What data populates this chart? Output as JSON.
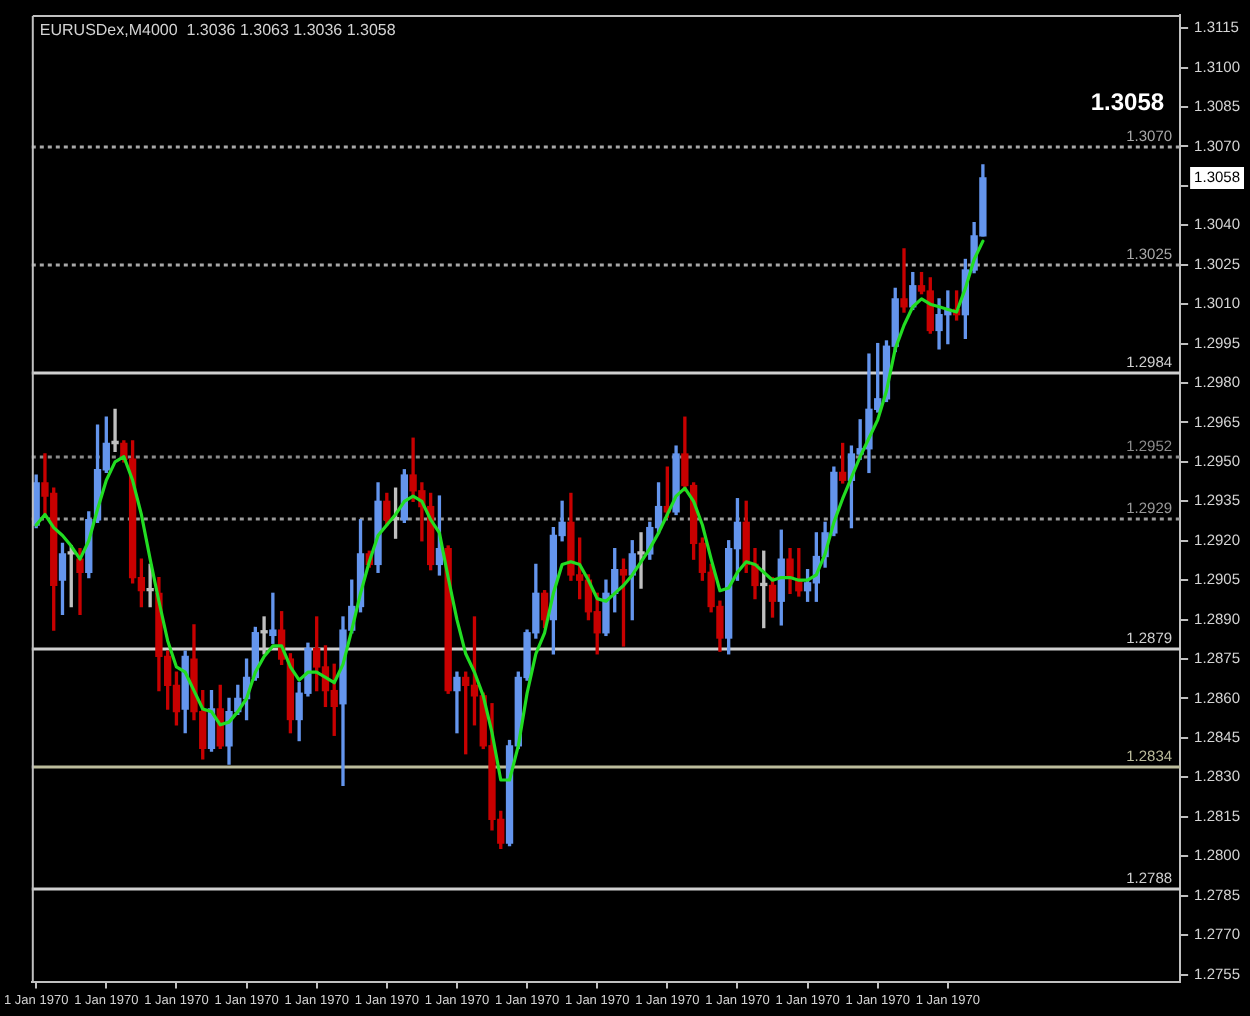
{
  "chart_data": {
    "type": "candlestick",
    "title": "EURUSDex,M4000  1.3036 1.3063 1.3036 1.3058",
    "categories": [
      "1 Jan 1970",
      null,
      null,
      null,
      null,
      null,
      null,
      null,
      "1 Jan 1970",
      null,
      null,
      null,
      null,
      null,
      null,
      null,
      "1 Jan 1970",
      null,
      null,
      null,
      null,
      null,
      null,
      null,
      "1 Jan 1970",
      null,
      null,
      null,
      null,
      null,
      null,
      null,
      "1 Jan 1970",
      null,
      null,
      null,
      null,
      null,
      null,
      null,
      "1 Jan 1970",
      null,
      null,
      null,
      null,
      null,
      null,
      null,
      "1 Jan 1970",
      null,
      null,
      null,
      null,
      null,
      null,
      null,
      "1 Jan 1970",
      null,
      null,
      null,
      null,
      null,
      null,
      null,
      "1 Jan 1970",
      null,
      null,
      null,
      null,
      null,
      null,
      null,
      "1 Jan 1970",
      null,
      null,
      null,
      null,
      null,
      null,
      null,
      "1 Jan 1970",
      null,
      null,
      null,
      null,
      null,
      null,
      null,
      "1 Jan 1970",
      null,
      null,
      null,
      null,
      null,
      null,
      null,
      "1 Jan 1970",
      null,
      null,
      null,
      null,
      null,
      null,
      null,
      "1 Jan 1970",
      null,
      null,
      null,
      null,
      null,
      null,
      null,
      null,
      null,
      null,
      null,
      null,
      null,
      null,
      null,
      null,
      null,
      null,
      null,
      null,
      null,
      null,
      null,
      null,
      null,
      null
    ],
    "ohlc": [
      [
        1.2926,
        1.2945,
        1.2925,
        1.2942
      ],
      [
        1.2942,
        1.2953,
        1.2929,
        1.2937
      ],
      [
        1.2938,
        1.294,
        1.2886,
        1.2903
      ],
      [
        1.2905,
        1.2919,
        1.2892,
        1.2915
      ],
      [
        1.2915,
        1.2918,
        1.2895,
        1.2915
      ],
      [
        1.2913,
        1.2917,
        1.2892,
        1.2908
      ],
      [
        1.2908,
        1.2931,
        1.2906,
        1.2928
      ],
      [
        1.2928,
        1.2964,
        1.2927,
        1.2947
      ],
      [
        1.2947,
        1.2967,
        1.2946,
        1.2957
      ],
      [
        1.2957,
        1.297,
        1.2954,
        1.2957
      ],
      [
        1.2957,
        1.2958,
        1.295,
        1.2951
      ],
      [
        1.2951,
        1.2958,
        1.2904,
        1.2906
      ],
      [
        1.2906,
        1.2913,
        1.2895,
        1.2901
      ],
      [
        1.2901,
        1.2911,
        1.2895,
        1.2901
      ],
      [
        1.29,
        1.2906,
        1.2863,
        1.2876
      ],
      [
        1.2876,
        1.2878,
        1.2856,
        1.2865
      ],
      [
        1.2865,
        1.287,
        1.285,
        1.2855
      ],
      [
        1.2856,
        1.2878,
        1.2847,
        1.2876
      ],
      [
        1.2875,
        1.2888,
        1.2852,
        1.2855
      ],
      [
        1.2855,
        1.2863,
        1.2837,
        1.2841
      ],
      [
        1.2841,
        1.2863,
        1.284,
        1.2856
      ],
      [
        1.2856,
        1.2865,
        1.2841,
        1.2842
      ],
      [
        1.2842,
        1.286,
        1.2835,
        1.2855
      ],
      [
        1.2855,
        1.2865,
        1.2854,
        1.286
      ],
      [
        1.286,
        1.2875,
        1.2852,
        1.2868
      ],
      [
        1.2868,
        1.2887,
        1.2867,
        1.2885
      ],
      [
        1.2885,
        1.2891,
        1.2877,
        1.2885
      ],
      [
        1.2884,
        1.29,
        1.2881,
        1.2886
      ],
      [
        1.2886,
        1.2893,
        1.2873,
        1.2875
      ],
      [
        1.2875,
        1.2877,
        1.2847,
        1.2852
      ],
      [
        1.2852,
        1.2866,
        1.2844,
        1.2862
      ],
      [
        1.2862,
        1.2881,
        1.2861,
        1.2879
      ],
      [
        1.2879,
        1.2891,
        1.2863,
        1.2872
      ],
      [
        1.2872,
        1.288,
        1.2857,
        1.2863
      ],
      [
        1.2863,
        1.2873,
        1.2846,
        1.2857
      ],
      [
        1.2858,
        1.2891,
        1.2827,
        1.2886
      ],
      [
        1.2886,
        1.2905,
        1.2885,
        1.2895
      ],
      [
        1.2895,
        1.2928,
        1.2893,
        1.2915
      ],
      [
        1.2915,
        1.2916,
        1.291,
        1.2911
      ],
      [
        1.2911,
        1.2942,
        1.2908,
        1.2935
      ],
      [
        1.2935,
        1.2938,
        1.2926,
        1.2928
      ],
      [
        1.2928,
        1.294,
        1.2921,
        1.2928
      ],
      [
        1.2928,
        1.2947,
        1.2927,
        1.2945
      ],
      [
        1.2945,
        1.2959,
        1.2935,
        1.2939
      ],
      [
        1.2939,
        1.2942,
        1.292,
        1.2933
      ],
      [
        1.2933,
        1.2938,
        1.2909,
        1.2911
      ],
      [
        1.2911,
        1.2937,
        1.2907,
        1.2917
      ],
      [
        1.2917,
        1.2918,
        1.2862,
        1.2863
      ],
      [
        1.2863,
        1.287,
        1.2847,
        1.2868
      ],
      [
        1.2868,
        1.287,
        1.2839,
        1.2865
      ],
      [
        1.2865,
        1.2891,
        1.285,
        1.2861
      ],
      [
        1.2861,
        1.2862,
        1.2841,
        1.2842
      ],
      [
        1.2842,
        1.2858,
        1.281,
        1.2814
      ],
      [
        1.2814,
        1.2817,
        1.2803,
        1.2805
      ],
      [
        1.2805,
        1.2844,
        1.2804,
        1.2842
      ],
      [
        1.2842,
        1.287,
        1.2841,
        1.2868
      ],
      [
        1.2868,
        1.2886,
        1.2867,
        1.2885
      ],
      [
        1.2885,
        1.2911,
        1.2883,
        1.29
      ],
      [
        1.29,
        1.2901,
        1.2887,
        1.289
      ],
      [
        1.289,
        1.2925,
        1.2877,
        1.2922
      ],
      [
        1.2922,
        1.2935,
        1.292,
        1.2927
      ],
      [
        1.2927,
        1.2938,
        1.2905,
        1.2907
      ],
      [
        1.2907,
        1.2921,
        1.2898,
        1.2905
      ],
      [
        1.2905,
        1.2907,
        1.289,
        1.2893
      ],
      [
        1.2893,
        1.29,
        1.2877,
        1.2885
      ],
      [
        1.2885,
        1.2905,
        1.2884,
        1.29
      ],
      [
        1.29,
        1.2917,
        1.2893,
        1.2909
      ],
      [
        1.2909,
        1.2913,
        1.288,
        1.2907
      ],
      [
        1.2907,
        1.292,
        1.289,
        1.2915
      ],
      [
        1.2915,
        1.2923,
        1.2902,
        1.2915
      ],
      [
        1.2915,
        1.2927,
        1.2913,
        1.2925
      ],
      [
        1.2925,
        1.2942,
        1.2923,
        1.2933
      ],
      [
        1.2933,
        1.2948,
        1.2929,
        1.2931
      ],
      [
        1.2931,
        1.2956,
        1.293,
        1.2953
      ],
      [
        1.2953,
        1.2967,
        1.2939,
        1.2941
      ],
      [
        1.2941,
        1.2942,
        1.2913,
        1.2919
      ],
      [
        1.2919,
        1.2921,
        1.2905,
        1.2908
      ],
      [
        1.2908,
        1.2911,
        1.2893,
        1.2895
      ],
      [
        1.2895,
        1.2897,
        1.2878,
        1.2883
      ],
      [
        1.2883,
        1.292,
        1.2877,
        1.2917
      ],
      [
        1.2917,
        1.2936,
        1.2905,
        1.2927
      ],
      [
        1.2927,
        1.2935,
        1.2908,
        1.2911
      ],
      [
        1.2911,
        1.2917,
        1.2898,
        1.2903
      ],
      [
        1.2903,
        1.2916,
        1.2887,
        1.2903
      ],
      [
        1.2903,
        1.2906,
        1.2891,
        1.2897
      ],
      [
        1.2897,
        1.2924,
        1.2888,
        1.2913
      ],
      [
        1.2913,
        1.2917,
        1.29,
        1.2906
      ],
      [
        1.2905,
        1.2917,
        1.2899,
        1.2901
      ],
      [
        1.2901,
        1.2909,
        1.2897,
        1.2904
      ],
      [
        1.2904,
        1.2923,
        1.2897,
        1.2914
      ],
      [
        1.2914,
        1.2927,
        1.291,
        1.2923
      ],
      [
        1.2923,
        1.2948,
        1.2922,
        1.2946
      ],
      [
        1.2946,
        1.2957,
        1.2942,
        1.2943
      ],
      [
        1.2943,
        1.2956,
        1.2925,
        1.2953
      ],
      [
        1.2953,
        1.2966,
        1.2951,
        1.2955
      ],
      [
        1.2955,
        1.2991,
        1.2946,
        1.297
      ],
      [
        1.297,
        1.2995,
        1.2969,
        1.2974
      ],
      [
        1.2974,
        1.2996,
        1.2973,
        1.2994
      ],
      [
        1.2994,
        1.3016,
        1.2992,
        1.3012
      ],
      [
        1.3012,
        1.3031,
        1.3007,
        1.3009
      ],
      [
        1.3009,
        1.3022,
        1.3008,
        1.3017
      ],
      [
        1.3017,
        1.3022,
        1.3014,
        1.3015
      ],
      [
        1.3015,
        1.302,
        1.2999,
        1.3
      ],
      [
        1.3,
        1.3012,
        1.2993,
        1.3006
      ],
      [
        1.3006,
        1.3015,
        1.2995,
        1.3008
      ],
      [
        1.3008,
        1.3015,
        1.3004,
        1.3006
      ],
      [
        1.3006,
        1.3027,
        1.2997,
        1.3023
      ],
      [
        1.3023,
        1.3041,
        1.3022,
        1.3036
      ],
      [
        1.3036,
        1.3063,
        1.3036,
        1.3058
      ],
      null,
      null,
      null,
      null,
      null,
      null,
      null,
      null,
      null,
      null,
      null,
      null,
      null,
      null,
      null,
      null,
      null,
      null,
      null,
      null,
      null,
      null
    ],
    "colors": [
      "#6495ed",
      "#c80000",
      "#c80000",
      "#6495ed",
      "#c0c0c0",
      "#c80000",
      "#6495ed",
      "#6495ed",
      "#6495ed",
      "#c0c0c0",
      "#c80000",
      "#c80000",
      "#c80000",
      "#c0c0c0",
      "#c80000",
      "#c80000",
      "#c80000",
      "#6495ed",
      "#c80000",
      "#c80000",
      "#6495ed",
      "#c80000",
      "#6495ed",
      "#6495ed",
      "#6495ed",
      "#6495ed",
      "#c0c0c0",
      "#6495ed",
      "#c80000",
      "#c80000",
      "#6495ed",
      "#6495ed",
      "#c80000",
      "#c80000",
      "#c80000",
      "#6495ed",
      "#6495ed",
      "#6495ed",
      "#c80000",
      "#6495ed",
      "#c80000",
      "#c0c0c0",
      "#6495ed",
      "#c80000",
      "#c80000",
      "#c80000",
      "#6495ed",
      "#c80000",
      "#6495ed",
      "#c80000",
      "#c80000",
      "#c80000",
      "#c80000",
      "#c80000",
      "#6495ed",
      "#6495ed",
      "#6495ed",
      "#6495ed",
      "#c80000",
      "#6495ed",
      "#6495ed",
      "#c80000",
      "#c80000",
      "#c80000",
      "#c80000",
      "#6495ed",
      "#6495ed",
      "#c80000",
      "#6495ed",
      "#c0c0c0",
      "#6495ed",
      "#6495ed",
      "#c80000",
      "#6495ed",
      "#c80000",
      "#c80000",
      "#c80000",
      "#c80000",
      "#c80000",
      "#6495ed",
      "#6495ed",
      "#c80000",
      "#c80000",
      "#c0c0c0",
      "#c80000",
      "#6495ed",
      "#c80000",
      "#c80000",
      "#6495ed",
      "#6495ed",
      "#6495ed",
      "#6495ed",
      "#c80000",
      "#6495ed",
      "#6495ed",
      "#6495ed",
      "#6495ed",
      "#6495ed",
      "#6495ed",
      "#c80000",
      "#6495ed",
      "#c80000",
      "#c80000",
      "#6495ed",
      "#6495ed",
      "#c80000",
      "#6495ed",
      "#6495ed",
      "#6495ed",
      null,
      null,
      null,
      null,
      null,
      null,
      null,
      null,
      null,
      null,
      null,
      null,
      null,
      null,
      null,
      null,
      null,
      null,
      null,
      null,
      null,
      null
    ],
    "series": [
      {
        "type": "line",
        "color": "#22dd22",
        "values": [
          1.2926,
          1.293,
          1.2925,
          1.2922,
          1.2918,
          1.2913,
          1.292,
          1.2932,
          1.2943,
          1.295,
          1.2952,
          1.2943,
          1.293,
          1.2913,
          1.2897,
          1.2882,
          1.2872,
          1.287,
          1.2863,
          1.2856,
          1.2855,
          1.285,
          1.2851,
          1.2855,
          1.286,
          1.287,
          1.2876,
          1.288,
          1.288,
          1.2872,
          1.2867,
          1.287,
          1.287,
          1.2868,
          1.2866,
          1.2873,
          1.2886,
          1.29,
          1.2912,
          1.2922,
          1.2926,
          1.293,
          1.2935,
          1.2937,
          1.2935,
          1.2928,
          1.2923,
          1.2906,
          1.289,
          1.2877,
          1.287,
          1.2861,
          1.2847,
          1.2829,
          1.2829,
          1.2842,
          1.2862,
          1.2877,
          1.2885,
          1.29,
          1.2911,
          1.2912,
          1.2911,
          1.2905,
          1.2898,
          1.2897,
          1.29,
          1.2903,
          1.2907,
          1.2912,
          1.2917,
          1.2923,
          1.293,
          1.2937,
          1.294,
          1.2935,
          1.2926,
          1.2913,
          1.2901,
          1.2902,
          1.2908,
          1.2912,
          1.2911,
          1.2908,
          1.2905,
          1.2906,
          1.2906,
          1.2905,
          1.2905,
          1.2907,
          1.2915,
          1.2927,
          1.2936,
          1.2944,
          1.2952,
          1.2959,
          1.2966,
          1.2977,
          1.2993,
          1.3002,
          1.3009,
          1.3012,
          1.301,
          1.3009,
          1.3008,
          1.3007,
          1.3016,
          1.3027,
          1.3034,
          null,
          null,
          null,
          null,
          null,
          null,
          null,
          null,
          null,
          null,
          null,
          null,
          null,
          null,
          null,
          null,
          null,
          null,
          null,
          null,
          null,
          null
        ]
      }
    ],
    "ylim": [
      1.2752,
      1.312
    ],
    "yticks": [
      1.2755,
      {
        "value": 1.277,
        "label": "1.2770"
      },
      1.2785,
      {
        "value": 1.28,
        "label": "1.2800"
      },
      1.2815,
      {
        "value": 1.283,
        "label": "1.2830"
      },
      1.2845,
      {
        "value": 1.286,
        "label": "1.2860"
      },
      1.2875,
      {
        "value": 1.289,
        "label": "1.2890"
      },
      1.2905,
      {
        "value": 1.292,
        "label": "1.2920"
      },
      1.2935,
      {
        "value": 1.295,
        "label": "1.2950"
      },
      1.2965,
      {
        "value": 1.298,
        "label": "1.2980"
      },
      1.2995,
      {
        "value": 1.301,
        "label": "1.3010"
      },
      1.3025,
      {
        "value": 1.304,
        "label": "1.3040"
      },
      {
        "value": 1.3055,
        "label": null
      },
      {
        "value": 1.307,
        "label": "1.3070"
      },
      1.3085,
      {
        "value": 1.31,
        "label": "1.3100"
      },
      1.3115
    ],
    "ref_lines": [
      {
        "axis": "y",
        "value": 1.307,
        "label": "1.3070",
        "color": "#a8a8a8",
        "line_style": "dotted"
      },
      {
        "axis": "y",
        "value": 1.3025,
        "label": "1.3025",
        "color": "#a8a8a8",
        "line_style": "dotted"
      },
      {
        "axis": "y",
        "value": 1.2984,
        "label": "1.2984",
        "color": "#d0d0d0"
      },
      {
        "axis": "y",
        "value": 1.2952,
        "label": "1.2952",
        "color": "#8c8c8c",
        "line_style": "dotted"
      },
      {
        "axis": "y",
        "value": 1.2929,
        "label": "1.2929",
        "color": "#9a9a9a",
        "line_style": "dotted"
      },
      {
        "axis": "y",
        "value": 1.2879,
        "label": "1.2879",
        "color": "#d0d0d0"
      },
      {
        "axis": "y",
        "value": 1.2834,
        "label": "1.2834",
        "color": "#bcbc9c"
      },
      {
        "axis": "y",
        "value": 1.2788,
        "label": "1.2788",
        "color": "#d0d0d0"
      }
    ],
    "annotations": [
      "1.3058",
      "1.3058"
    ]
  }
}
